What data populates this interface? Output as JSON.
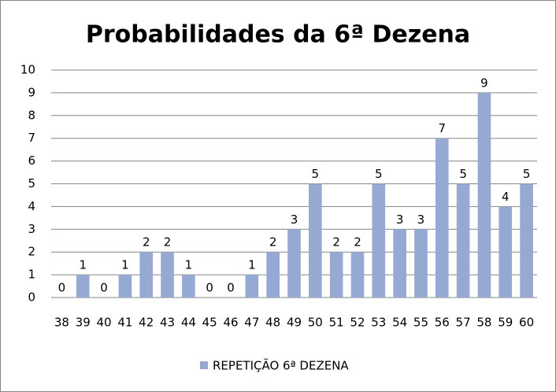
{
  "chart_data": {
    "type": "bar",
    "title": "Probabilidades da 6ª Dezena",
    "categories": [
      "38",
      "39",
      "40",
      "41",
      "42",
      "43",
      "44",
      "45",
      "46",
      "47",
      "48",
      "49",
      "50",
      "51",
      "52",
      "53",
      "54",
      "55",
      "56",
      "57",
      "58",
      "59",
      "60"
    ],
    "series": [
      {
        "name": "REPETIÇÃO 6ª DEZENA",
        "color": "#95a9d2",
        "values": [
          0,
          1,
          0,
          1,
          2,
          2,
          1,
          0,
          0,
          1,
          2,
          3,
          5,
          2,
          2,
          5,
          3,
          3,
          7,
          5,
          9,
          4,
          5
        ]
      }
    ],
    "ylim": [
      0,
      10
    ],
    "yticks": [
      0,
      1,
      2,
      3,
      4,
      5,
      6,
      7,
      8,
      9,
      10
    ],
    "grid": true,
    "legend": "bottom",
    "data_labels": true
  }
}
